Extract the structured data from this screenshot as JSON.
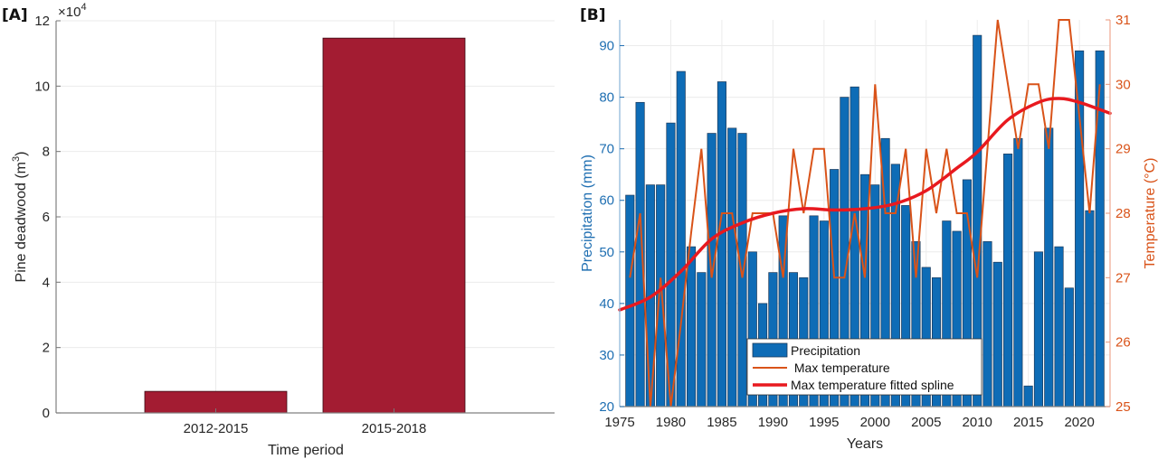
{
  "chart_data": [
    {
      "panel": "[A]",
      "type": "bar",
      "categories": [
        "2012-2015",
        "2015-2018"
      ],
      "values": [
        6600,
        114700
      ],
      "xlabel": "Time period",
      "ylabel": "Pine deadwood (m",
      "ylabel_superscript": "3",
      "ylabel_suffix": ")",
      "ylim": [
        0,
        120000
      ],
      "yticks": [
        0,
        2,
        4,
        6,
        8,
        10,
        12
      ],
      "y_exponent_label": "×10",
      "y_exponent": "4",
      "grid": true,
      "bar_color": "#a31c32"
    },
    {
      "panel": "[B]",
      "type": "bar+line",
      "xlabel": "Years",
      "xlim": [
        1975,
        2023
      ],
      "xticks": [
        1975,
        1980,
        1985,
        1990,
        1995,
        2000,
        2005,
        2010,
        2015,
        2020
      ],
      "left_axis": {
        "label": "Precipitation (mm)",
        "ylim": [
          20,
          95
        ],
        "ticks": [
          20,
          30,
          40,
          50,
          60,
          70,
          80,
          90
        ],
        "color": "#1f6fb2"
      },
      "right_axis": {
        "label": "Temperature (°C)",
        "ylim": [
          25,
          31
        ],
        "ticks": [
          25,
          26,
          27,
          28,
          29,
          30,
          31
        ],
        "color": "#d95319"
      },
      "grid": true,
      "legend_position": "bottom-center",
      "x": [
        1976,
        1977,
        1978,
        1979,
        1980,
        1981,
        1982,
        1983,
        1984,
        1985,
        1986,
        1987,
        1988,
        1989,
        1990,
        1991,
        1992,
        1993,
        1994,
        1995,
        1996,
        1997,
        1998,
        1999,
        2000,
        2001,
        2002,
        2003,
        2004,
        2005,
        2006,
        2007,
        2008,
        2009,
        2010,
        2011,
        2012,
        2013,
        2014,
        2015,
        2016,
        2017,
        2018,
        2019,
        2020,
        2021,
        2022
      ],
      "series": [
        {
          "name": "Precipitation",
          "type": "bar",
          "axis": "left",
          "color": "#0e6cb6",
          "values": [
            61,
            79,
            63,
            63,
            75,
            85,
            51,
            46,
            73,
            83,
            74,
            73,
            50,
            40,
            46,
            57,
            46,
            45,
            57,
            56,
            66,
            80,
            82,
            65,
            63,
            72,
            67,
            59,
            52,
            47,
            45,
            56,
            54,
            64,
            92,
            52,
            48,
            69,
            72,
            24,
            50,
            74,
            51,
            43,
            89,
            58,
            89
          ]
        },
        {
          "name": " Max temperature",
          "type": "line",
          "axis": "right",
          "color": "#d95319",
          "values": [
            27,
            28,
            25,
            27,
            25,
            26.3,
            27.7,
            29,
            27,
            28,
            28,
            27,
            28,
            28,
            28,
            27,
            29,
            28,
            29,
            29,
            27,
            27,
            28,
            27,
            30,
            28,
            28,
            29,
            27,
            29,
            28,
            29,
            28,
            28,
            27,
            29,
            31,
            30,
            29,
            30,
            30,
            29,
            31,
            31,
            29.5,
            28,
            30
          ]
        },
        {
          "name": "Max temperature fitted spline",
          "type": "line",
          "axis": "right",
          "color": "#e8191f",
          "x": [
            1975,
            1978,
            1981,
            1984,
            1987,
            1990,
            1993,
            1996,
            1999,
            2002,
            2005,
            2008,
            2010,
            2013,
            2016,
            2018,
            2020,
            2023
          ],
          "values": [
            26.5,
            26.7,
            27.1,
            27.6,
            27.85,
            28.0,
            28.07,
            28.05,
            28.07,
            28.15,
            28.35,
            28.7,
            28.95,
            29.45,
            29.72,
            29.78,
            29.72,
            29.55
          ]
        }
      ]
    }
  ]
}
